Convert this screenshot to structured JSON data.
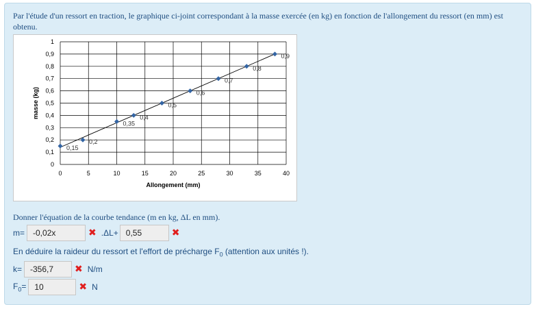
{
  "intro_text": "Par l'étude d'un ressort en traction, le graphique ci-joint correspondant à la masse exercée (en kg) en fonction de l'allongement du ressort (en mm) est obtenu.",
  "chart_data": {
    "type": "scatter",
    "x": [
      0,
      4,
      10,
      13,
      18,
      23,
      28,
      33,
      38
    ],
    "y": [
      0.15,
      0.2,
      0.35,
      0.4,
      0.5,
      0.6,
      0.7,
      0.8,
      0.9
    ],
    "point_labels": [
      "0,15",
      "0,2",
      "0,35",
      "0,4",
      "0,5",
      "0,6",
      "0,7",
      "0,8",
      "0,9"
    ],
    "title": "",
    "xlabel": "Allongement (mm)",
    "ylabel": "masse (kg)",
    "xlim": [
      0,
      40
    ],
    "ylim": [
      0,
      1
    ],
    "xticks": [
      "0",
      "5",
      "10",
      "15",
      "20",
      "25",
      "30",
      "35",
      "40"
    ],
    "yticks": [
      "0",
      "0,1",
      "0,2",
      "0,3",
      "0,4",
      "0,5",
      "0,6",
      "0,7",
      "0,8",
      "0,9",
      "1"
    ],
    "grid": true,
    "trendline": true,
    "marker_color": "#3465a4"
  },
  "question1": "Donner l'équation de la courbe tendance (m en kg, ΔL en mm).",
  "m_row": {
    "label": "m=",
    "slope_value": "-0,02x",
    "mid_label": ".ΔL+",
    "intercept_value": "0,55"
  },
  "question2_prefix": "En déduire la raideur du ressort et l'effort de précharge F",
  "question2_sub": "0",
  "question2_suffix": " (attention aux unités !).",
  "k_row": {
    "label": "k=",
    "value": "-356,7",
    "unit": "N/m"
  },
  "f0_row": {
    "label_main": "F",
    "label_sub": "0",
    "label_eq": "=",
    "value": "10",
    "unit": "N"
  },
  "wrong_mark": "✖"
}
